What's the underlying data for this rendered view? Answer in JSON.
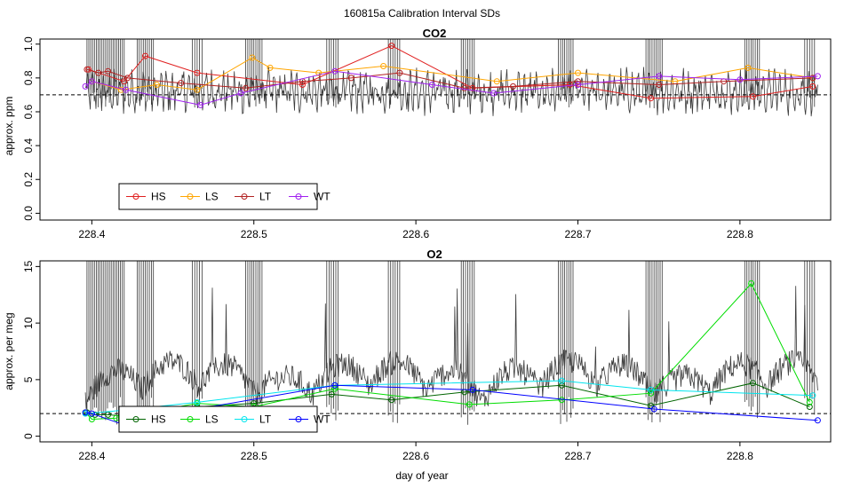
{
  "figure_title": "160815a   Calibration Interval SDs",
  "xlabel": "day of year",
  "colors": {
    "HS_co2": "#e02020",
    "LS": "#ffa500",
    "LT_co2": "#b22222",
    "WT_co2": "#a020f0",
    "HS_o2": "#006400",
    "LS_o2": "#00dd00",
    "LT_o2": "#00e5ee",
    "WT_o2": "#0000ff",
    "trace": "#3a3a3a",
    "refline": "#000000"
  },
  "chart_data": [
    {
      "type": "line",
      "title": "CO2",
      "ylabel": "approx. ppm",
      "xlim": [
        228.368,
        228.856
      ],
      "ylim": [
        -0.04,
        1.03
      ],
      "x_ticks": [
        228.4,
        228.5,
        228.6,
        228.7,
        228.8
      ],
      "x_tick_labels": [
        "228.4",
        "228.5",
        "228.6",
        "228.7",
        "228.8"
      ],
      "y_ticks": [
        0.0,
        0.2,
        0.4,
        0.6,
        0.8,
        1.0
      ],
      "y_tick_labels": [
        "0.0",
        "0.2",
        "0.4",
        "0.6",
        "0.8",
        "1.0"
      ],
      "reference_line": 0.7,
      "legend": {
        "position": "bottom-left",
        "entries": [
          "HS",
          "LS",
          "LT",
          "WT"
        ]
      },
      "series": [
        {
          "name": "HS",
          "color": "#e02020",
          "x": [
            228.398,
            228.42,
            228.433,
            228.465,
            228.53,
            228.585,
            228.635,
            228.695,
            228.745,
            228.808,
            228.845
          ],
          "y": [
            0.85,
            0.78,
            0.93,
            0.83,
            0.76,
            0.99,
            0.74,
            0.76,
            0.68,
            0.69,
            0.75
          ]
        },
        {
          "name": "LS",
          "color": "#ffa500",
          "x": [
            228.4,
            228.418,
            228.44,
            228.465,
            228.499,
            228.51,
            228.54,
            228.58,
            228.65,
            228.7,
            228.76,
            228.805,
            228.845
          ],
          "y": [
            0.78,
            0.73,
            0.76,
            0.73,
            0.92,
            0.86,
            0.83,
            0.87,
            0.78,
            0.83,
            0.78,
            0.86,
            0.8
          ]
        },
        {
          "name": "LT",
          "color": "#b22222",
          "x": [
            228.397,
            228.404,
            228.41,
            228.422,
            228.455,
            228.495,
            228.53,
            228.56,
            228.59,
            228.63,
            228.66,
            228.7,
            228.75,
            228.79,
            228.845
          ],
          "y": [
            0.85,
            0.83,
            0.84,
            0.8,
            0.77,
            0.74,
            0.78,
            0.8,
            0.83,
            0.74,
            0.75,
            0.78,
            0.76,
            0.78,
            0.8
          ]
        },
        {
          "name": "WT",
          "color": "#a020f0",
          "x": [
            228.396,
            228.4,
            228.421,
            228.467,
            228.492,
            228.55,
            228.61,
            228.648,
            228.7,
            228.75,
            228.8,
            228.848
          ],
          "y": [
            0.75,
            0.78,
            0.73,
            0.64,
            0.71,
            0.84,
            0.76,
            0.71,
            0.76,
            0.81,
            0.79,
            0.81
          ]
        }
      ]
    },
    {
      "type": "line",
      "title": "O2",
      "ylabel": "approx. per meg",
      "xlim": [
        228.368,
        228.856
      ],
      "ylim": [
        -0.5,
        15.5
      ],
      "x_ticks": [
        228.4,
        228.5,
        228.6,
        228.7,
        228.8
      ],
      "x_tick_labels": [
        "228.4",
        "228.5",
        "228.6",
        "228.7",
        "228.8"
      ],
      "y_ticks": [
        0,
        5,
        10,
        15
      ],
      "y_tick_labels": [
        "0",
        "5",
        "10",
        "15"
      ],
      "reference_line": 2.0,
      "legend": {
        "position": "bottom-left",
        "entries": [
          "HS",
          "LS",
          "LT",
          "WT"
        ]
      },
      "series": [
        {
          "name": "HS",
          "color": "#006400",
          "x": [
            228.397,
            228.402,
            228.41,
            228.418,
            228.465,
            228.5,
            228.548,
            228.585,
            228.63,
            228.69,
            228.745,
            228.808,
            228.843
          ],
          "y": [
            2.1,
            1.9,
            1.9,
            1.8,
            2.6,
            2.9,
            3.7,
            3.2,
            3.9,
            4.5,
            2.7,
            4.7,
            2.6
          ]
        },
        {
          "name": "LS",
          "color": "#00dd00",
          "x": [
            228.396,
            228.4,
            228.415,
            228.465,
            228.5,
            228.55,
            228.633,
            228.69,
            228.745,
            228.807,
            228.843
          ],
          "y": [
            2.1,
            1.5,
            1.6,
            2.9,
            2.6,
            4.2,
            2.8,
            3.2,
            3.8,
            13.5,
            3.0
          ]
        },
        {
          "name": "LT",
          "color": "#00e5ee",
          "x": [
            228.396,
            228.42,
            228.465,
            228.55,
            228.69,
            228.745,
            228.845
          ],
          "y": [
            2.0,
            2.3,
            3.0,
            4.5,
            4.9,
            4.1,
            3.6
          ]
        },
        {
          "name": "WT",
          "color": "#0000ff",
          "x": [
            228.396,
            228.4,
            228.42,
            228.465,
            228.55,
            228.635,
            228.747,
            228.848
          ],
          "y": [
            2.1,
            2.0,
            1.0,
            2.4,
            4.5,
            4.1,
            2.4,
            1.4
          ]
        }
      ]
    }
  ]
}
